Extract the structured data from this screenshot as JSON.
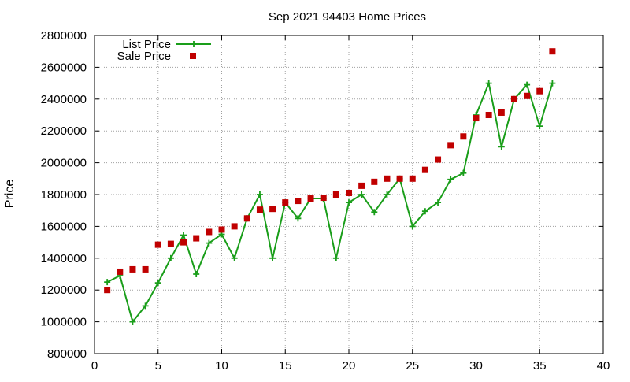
{
  "chart_data": {
    "type": "scatter",
    "title": "Sep 2021 94403 Home Prices",
    "xlabel": "",
    "ylabel": "Price",
    "xlim": [
      0,
      40
    ],
    "ylim": [
      800000,
      2800000
    ],
    "x_ticks": [
      0,
      5,
      10,
      15,
      20,
      25,
      30,
      35,
      40
    ],
    "y_ticks": [
      800000,
      1000000,
      1200000,
      1400000,
      1600000,
      1800000,
      2000000,
      2200000,
      2400000,
      2600000,
      2800000
    ],
    "grid": true,
    "legend_position": "top-left",
    "series": [
      {
        "name": "List Price",
        "style": "line-with-plus-markers",
        "color": "#1a9e1a",
        "x": [
          1,
          2,
          3,
          4,
          5,
          6,
          7,
          8,
          9,
          10,
          11,
          12,
          13,
          14,
          15,
          16,
          17,
          18,
          19,
          20,
          21,
          22,
          23,
          24,
          25,
          26,
          27,
          28,
          29,
          30,
          31,
          32,
          33,
          34,
          35,
          36
        ],
        "values": [
          1250000,
          1290000,
          1000000,
          1100000,
          1245000,
          1400000,
          1545000,
          1300000,
          1495000,
          1550000,
          1400000,
          1650000,
          1800000,
          1400000,
          1750000,
          1650000,
          1775000,
          1775000,
          1400000,
          1750000,
          1800000,
          1690000,
          1800000,
          1900000,
          1600000,
          1695000,
          1750000,
          1895000,
          1935000,
          2300000,
          2500000,
          2100000,
          2400000,
          2490000,
          2230000,
          2500000
        ]
      },
      {
        "name": "Sale Price",
        "style": "square-markers",
        "color": "#c00000",
        "x": [
          1,
          2,
          3,
          4,
          5,
          6,
          7,
          8,
          9,
          10,
          11,
          12,
          13,
          14,
          15,
          16,
          17,
          18,
          19,
          20,
          21,
          22,
          23,
          24,
          25,
          26,
          27,
          28,
          29,
          30,
          31,
          32,
          33,
          34,
          35,
          36
        ],
        "values": [
          1200000,
          1315000,
          1330000,
          1330000,
          1485000,
          1490000,
          1500000,
          1525000,
          1565000,
          1580000,
          1600000,
          1650000,
          1705000,
          1710000,
          1750000,
          1760000,
          1775000,
          1780000,
          1800000,
          1810000,
          1855000,
          1880000,
          1900000,
          1900000,
          1900000,
          1955000,
          2020000,
          2110000,
          2165000,
          2280000,
          2300000,
          2315000,
          2400000,
          2420000,
          2450000,
          2700000
        ]
      }
    ]
  }
}
